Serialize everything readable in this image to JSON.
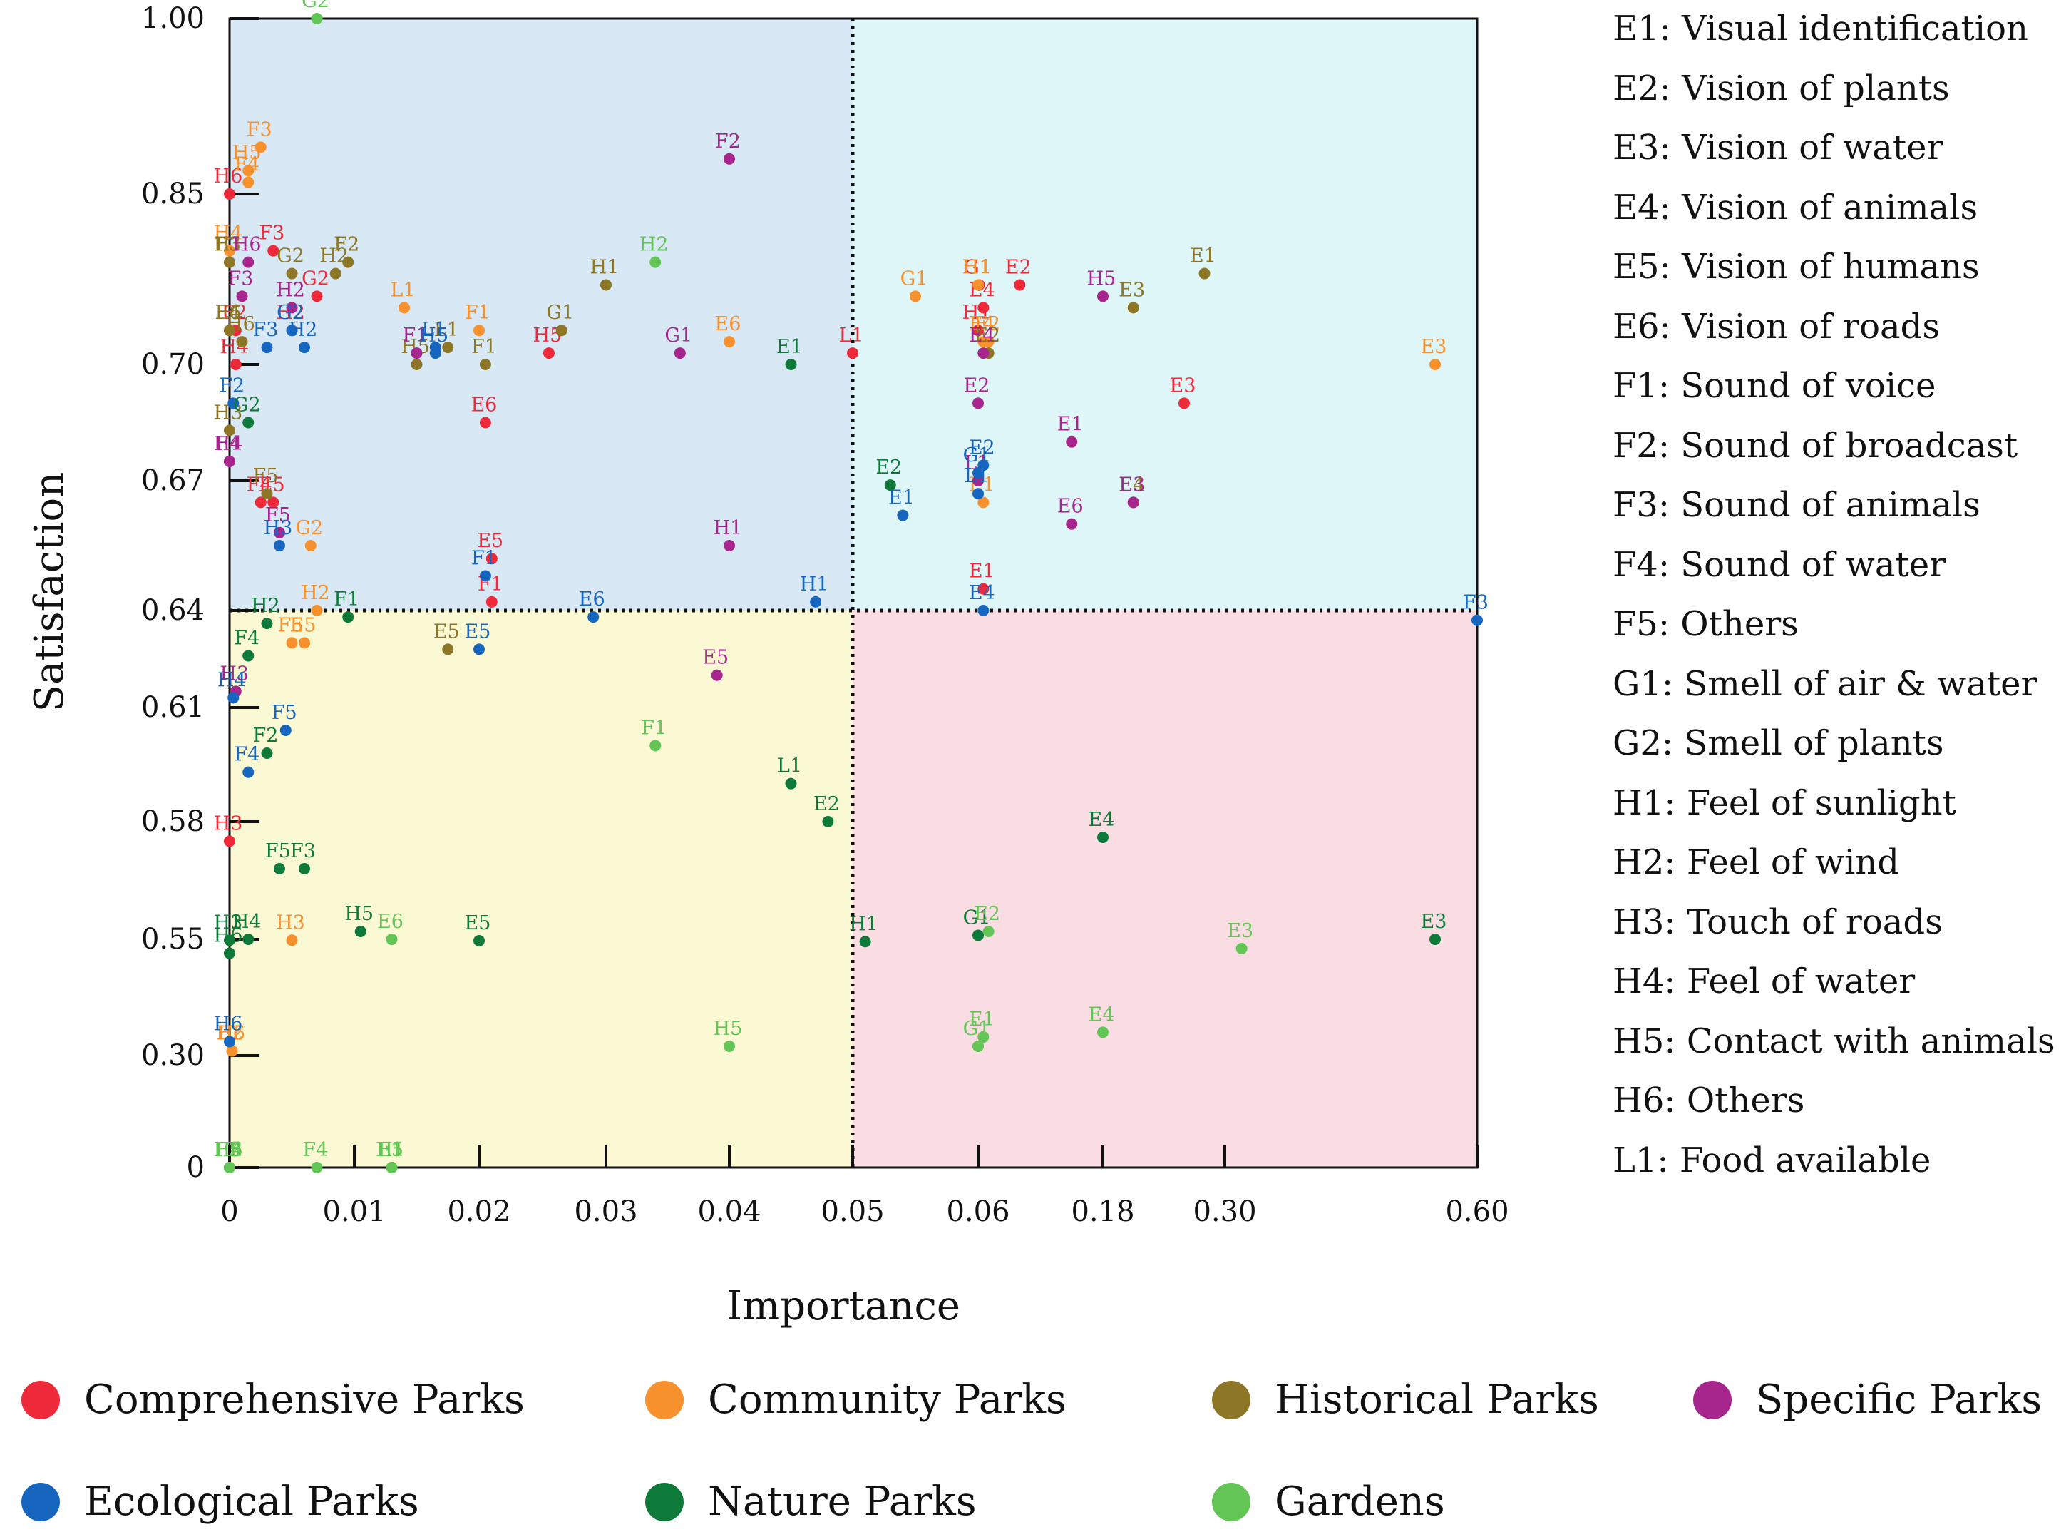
{
  "chart_data": {
    "type": "scatter",
    "xlabel": "Importance",
    "ylabel": "Satisfaction",
    "x_ticks": [
      "0",
      "0.01",
      "0.02",
      "0.03",
      "0.04",
      "0.05",
      "0.06",
      "0.18",
      "0.30",
      "0.60"
    ],
    "y_ticks": [
      "0",
      "0.30",
      "0.55",
      "0.58",
      "0.61",
      "0.64",
      "0.67",
      "0.70",
      "0.85",
      "1.00"
    ],
    "threshold_x_label": "0.05",
    "threshold_y_label": "0.64",
    "quadrant_colors": {
      "top_left": "#d8e9f5",
      "top_right": "#dff6f8",
      "bottom_left": "#fbf8d4",
      "bottom_right": "#fadde2"
    },
    "series": [
      {
        "name": "Comprehensive Parks",
        "color": "#ee2a3a",
        "points": [
          {
            "label": "H6",
            "x": "0",
            "y": "0.85"
          },
          {
            "label": "F3",
            "x": "0.0035",
            "y": "0.80"
          },
          {
            "label": "G2",
            "x": "0.007",
            "y": "0.76"
          },
          {
            "label": "F2",
            "x": "0.0005",
            "y": "0.73"
          },
          {
            "label": "H4",
            "x": "0.0005",
            "y": "0.70"
          },
          {
            "label": "H2",
            "x": "0.005",
            "y": "0.73"
          },
          {
            "label": "F4",
            "x": "0.0025",
            "y": "0.665"
          },
          {
            "label": "E5",
            "x": "0.0035",
            "y": "0.665"
          },
          {
            "label": "H5",
            "x": "0.0255",
            "y": "0.71"
          },
          {
            "label": "E6",
            "x": "0.0205",
            "y": "0.685"
          },
          {
            "label": "E5",
            "x": "0.021",
            "y": "0.652"
          },
          {
            "label": "F1",
            "x": "0.021",
            "y": "0.642"
          },
          {
            "label": "L1",
            "x": "0.050",
            "y": "0.71"
          },
          {
            "label": "G1",
            "x": "0.061",
            "y": "0.77"
          },
          {
            "label": "E4",
            "x": "0.065",
            "y": "0.75"
          },
          {
            "label": "H1",
            "x": "0.060",
            "y": "0.73"
          },
          {
            "label": "E2",
            "x": "0.10",
            "y": "0.77"
          },
          {
            "label": "E3",
            "x": "0.26",
            "y": "0.69"
          },
          {
            "label": "E1",
            "x": "0.065",
            "y": "0.645"
          },
          {
            "label": "H3",
            "x": "0",
            "y": "0.575"
          }
        ]
      },
      {
        "name": "Community Parks",
        "color": "#f7912d",
        "points": [
          {
            "label": "F3",
            "x": "0.0025",
            "y": "0.89"
          },
          {
            "label": "H5",
            "x": "0.0015",
            "y": "0.87"
          },
          {
            "label": "F4",
            "x": "0.0015",
            "y": "0.86"
          },
          {
            "label": "H4",
            "x": "0",
            "y": "0.80"
          },
          {
            "label": "L1",
            "x": "0.014",
            "y": "0.75"
          },
          {
            "label": "F1",
            "x": "0.020",
            "y": "0.73"
          },
          {
            "label": "E6",
            "x": "0.040",
            "y": "0.72"
          },
          {
            "label": "H2",
            "x": "0.007",
            "y": "0.64"
          },
          {
            "label": "G2",
            "x": "0.0065",
            "y": "0.655"
          },
          {
            "label": "F5",
            "x": "0.005",
            "y": "0.63"
          },
          {
            "label": "E5",
            "x": "0.006",
            "y": "0.63"
          },
          {
            "label": "H3",
            "x": "0.005",
            "y": "0.548"
          },
          {
            "label": "H6",
            "x": "0.0002",
            "y": "0.31"
          },
          {
            "label": "F2",
            "x": "0.0002",
            "y": "0.31"
          },
          {
            "label": "G1",
            "x": "0.055",
            "y": "0.76"
          },
          {
            "label": "H1",
            "x": "0.060",
            "y": "0.77"
          },
          {
            "label": "E4",
            "x": "0.065",
            "y": "0.72"
          },
          {
            "label": "E2",
            "x": "0.07",
            "y": "0.72"
          },
          {
            "label": "E3",
            "x": "0.55",
            "y": "0.70"
          },
          {
            "label": "E1",
            "x": "0.065",
            "y": "0.665"
          }
        ]
      },
      {
        "name": "Historical Parks",
        "color": "#8d7626",
        "points": [
          {
            "label": "F3",
            "x": "0",
            "y": "0.79"
          },
          {
            "label": "H1",
            "x": "0",
            "y": "0.79"
          },
          {
            "label": "G2",
            "x": "0.005",
            "y": "0.78"
          },
          {
            "label": "H2",
            "x": "0.0085",
            "y": "0.78"
          },
          {
            "label": "F2",
            "x": "0.0095",
            "y": "0.79"
          },
          {
            "label": "F4",
            "x": "0",
            "y": "0.73"
          },
          {
            "label": "E6",
            "x": "0",
            "y": "0.73"
          },
          {
            "label": "H6",
            "x": "0.001",
            "y": "0.72"
          },
          {
            "label": "H3",
            "x": "0",
            "y": "0.683"
          },
          {
            "label": "F5",
            "x": "0.003",
            "y": "0.667"
          },
          {
            "label": "H1",
            "x": "0.030",
            "y": "0.77"
          },
          {
            "label": "G1",
            "x": "0.0265",
            "y": "0.73"
          },
          {
            "label": "L1",
            "x": "0.0175",
            "y": "0.715"
          },
          {
            "label": "H5",
            "x": "0.015",
            "y": "0.70"
          },
          {
            "label": "F1",
            "x": "0.0205",
            "y": "0.70"
          },
          {
            "label": "E5",
            "x": "0.0175",
            "y": "0.628"
          },
          {
            "label": "E1",
            "x": "0.28",
            "y": "0.78"
          },
          {
            "label": "E3",
            "x": "0.21",
            "y": "0.75"
          },
          {
            "label": "E2",
            "x": "0.07",
            "y": "0.71"
          },
          {
            "label": "E4",
            "x": "0.21",
            "y": "0.665"
          }
        ]
      },
      {
        "name": "Specific Parks",
        "color": "#a6268e",
        "points": [
          {
            "label": "H6",
            "x": "0.0015",
            "y": "0.79"
          },
          {
            "label": "F3",
            "x": "0.001",
            "y": "0.76"
          },
          {
            "label": "H2",
            "x": "0.005",
            "y": "0.75"
          },
          {
            "label": "H4",
            "x": "0",
            "y": "0.675"
          },
          {
            "label": "F4",
            "x": "0",
            "y": "0.675"
          },
          {
            "label": "F5",
            "x": "0.004",
            "y": "0.658"
          },
          {
            "label": "H3",
            "x": "0.0005",
            "y": "0.615"
          },
          {
            "label": "F1",
            "x": "0.015",
            "y": "0.71"
          },
          {
            "label": "G1",
            "x": "0.036",
            "y": "0.71"
          },
          {
            "label": "F2",
            "x": "0.040",
            "y": "0.88"
          },
          {
            "label": "H1",
            "x": "0.040",
            "y": "0.655"
          },
          {
            "label": "E5",
            "x": "0.039",
            "y": "0.62"
          },
          {
            "label": "E2",
            "x": "0.060",
            "y": "0.69"
          },
          {
            "label": "E4",
            "x": "0.065",
            "y": "0.71"
          },
          {
            "label": "H5",
            "x": "0.18",
            "y": "0.76"
          },
          {
            "label": "E1",
            "x": "0.15",
            "y": "0.68"
          },
          {
            "label": "L1",
            "x": "0.06",
            "y": "0.67"
          },
          {
            "label": "E6",
            "x": "0.15",
            "y": "0.66"
          },
          {
            "label": "E3",
            "x": "0.21",
            "y": "0.665"
          }
        ]
      },
      {
        "name": "Ecological Parks",
        "color": "#1666c0",
        "points": [
          {
            "label": "G2",
            "x": "0.005",
            "y": "0.73"
          },
          {
            "label": "H2",
            "x": "0.006",
            "y": "0.715"
          },
          {
            "label": "F3",
            "x": "0.003",
            "y": "0.715"
          },
          {
            "label": "F2",
            "x": "0.0003",
            "y": "0.69"
          },
          {
            "label": "H3",
            "x": "0.004",
            "y": "0.655"
          },
          {
            "label": "L1",
            "x": "0.0165",
            "y": "0.715"
          },
          {
            "label": "H5",
            "x": "0.0165",
            "y": "0.71"
          },
          {
            "label": "F1",
            "x": "0.0205",
            "y": "0.648"
          },
          {
            "label": "E5",
            "x": "0.020",
            "y": "0.628"
          },
          {
            "label": "E6",
            "x": "0.029",
            "y": "0.638"
          },
          {
            "label": "H1",
            "x": "0.047",
            "y": "0.642"
          },
          {
            "label": "H4",
            "x": "0.0003",
            "y": "0.613"
          },
          {
            "label": "F5",
            "x": "0.0045",
            "y": "0.604"
          },
          {
            "label": "F4",
            "x": "0.0015",
            "y": "0.593"
          },
          {
            "label": "H6",
            "x": "0",
            "y": "0.33"
          },
          {
            "label": "E1",
            "x": "0.054",
            "y": "0.662"
          },
          {
            "label": "G1",
            "x": "0.06",
            "y": "0.672"
          },
          {
            "label": "L1",
            "x": "0.06",
            "y": "0.667"
          },
          {
            "label": "E2",
            "x": "0.065",
            "y": "0.674"
          },
          {
            "label": "E4",
            "x": "0.065",
            "y": "0.64"
          },
          {
            "label": "F3",
            "x": "0.60",
            "y": "0.637"
          }
        ]
      },
      {
        "name": "Nature Parks",
        "color": "#0e7a3a",
        "points": [
          {
            "label": "G2",
            "x": "0.0015",
            "y": "0.685"
          },
          {
            "label": "H2",
            "x": "0.003",
            "y": "0.636"
          },
          {
            "label": "F1",
            "x": "0.0095",
            "y": "0.638"
          },
          {
            "label": "F4",
            "x": "0.0015",
            "y": "0.626"
          },
          {
            "label": "F2",
            "x": "0.003",
            "y": "0.598"
          },
          {
            "label": "F5",
            "x": "0.004",
            "y": "0.568"
          },
          {
            "label": "F3",
            "x": "0.006",
            "y": "0.568"
          },
          {
            "label": "H5",
            "x": "0.0105",
            "y": "0.552"
          },
          {
            "label": "E5",
            "x": "0.020",
            "y": "0.547"
          },
          {
            "label": "H4",
            "x": "0.0015",
            "y": "0.55"
          },
          {
            "label": "H3",
            "x": "0",
            "y": "0.548"
          },
          {
            "label": "H6",
            "x": "0",
            "y": "0.52"
          },
          {
            "label": "E1",
            "x": "0.045",
            "y": "0.70"
          },
          {
            "label": "E2",
            "x": "0.053",
            "y": "0.669"
          },
          {
            "label": "L1",
            "x": "0.045",
            "y": "0.59"
          },
          {
            "label": "E2",
            "x": "0.048",
            "y": "0.58"
          },
          {
            "label": "H1",
            "x": "0.051",
            "y": "0.545"
          },
          {
            "label": "G1",
            "x": "0.06",
            "y": "0.551"
          },
          {
            "label": "E4",
            "x": "0.18",
            "y": "0.576"
          },
          {
            "label": "E3",
            "x": "0.55",
            "y": "0.55"
          }
        ]
      },
      {
        "name": "Gardens",
        "color": "#63c556",
        "points": [
          {
            "label": "G2",
            "x": "0.007",
            "y": "1.00"
          },
          {
            "label": "H2",
            "x": "0.034",
            "y": "0.79"
          },
          {
            "label": "F1",
            "x": "0.034",
            "y": "0.60"
          },
          {
            "label": "E6",
            "x": "0.013",
            "y": "0.55"
          },
          {
            "label": "H5",
            "x": "0.040",
            "y": "0.32"
          },
          {
            "label": "H3",
            "x": "0",
            "y": "0"
          },
          {
            "label": "H6",
            "x": "0",
            "y": "0"
          },
          {
            "label": "H4",
            "x": "0",
            "y": "0"
          },
          {
            "label": "F5",
            "x": "0",
            "y": "0"
          },
          {
            "label": "F2",
            "x": "0",
            "y": "0"
          },
          {
            "label": "F3",
            "x": "0",
            "y": "0"
          },
          {
            "label": "F4",
            "x": "0.007",
            "y": "0"
          },
          {
            "label": "L1",
            "x": "0.013",
            "y": "0"
          },
          {
            "label": "E5",
            "x": "0.013",
            "y": "0"
          },
          {
            "label": "H1",
            "x": "0.013",
            "y": "0"
          },
          {
            "label": "E2",
            "x": "0.07",
            "y": "0.552"
          },
          {
            "label": "E1",
            "x": "0.065",
            "y": "0.34"
          },
          {
            "label": "G1",
            "x": "0.06",
            "y": "0.32"
          },
          {
            "label": "E4",
            "x": "0.18",
            "y": "0.35"
          },
          {
            "label": "E3",
            "x": "0.32",
            "y": "0.53"
          }
        ]
      }
    ],
    "definitions": [
      "E1: Visual identification",
      "E2: Vision of plants",
      "E3: Vision of water",
      "E4: Vision of animals",
      "E5: Vision of humans",
      "E6: Vision of roads",
      "F1: Sound of voice",
      "F2: Sound of broadcast",
      "F3: Sound of animals",
      "F4: Sound of water",
      "F5: Others",
      "G1: Smell of air & water",
      "G2: Smell of plants",
      "H1: Feel of sunlight",
      "H2: Feel of wind",
      "H3: Touch of roads",
      "H4: Feel of water",
      "H5: Contact with animals",
      "H6: Others",
      "L1: Food available"
    ]
  }
}
